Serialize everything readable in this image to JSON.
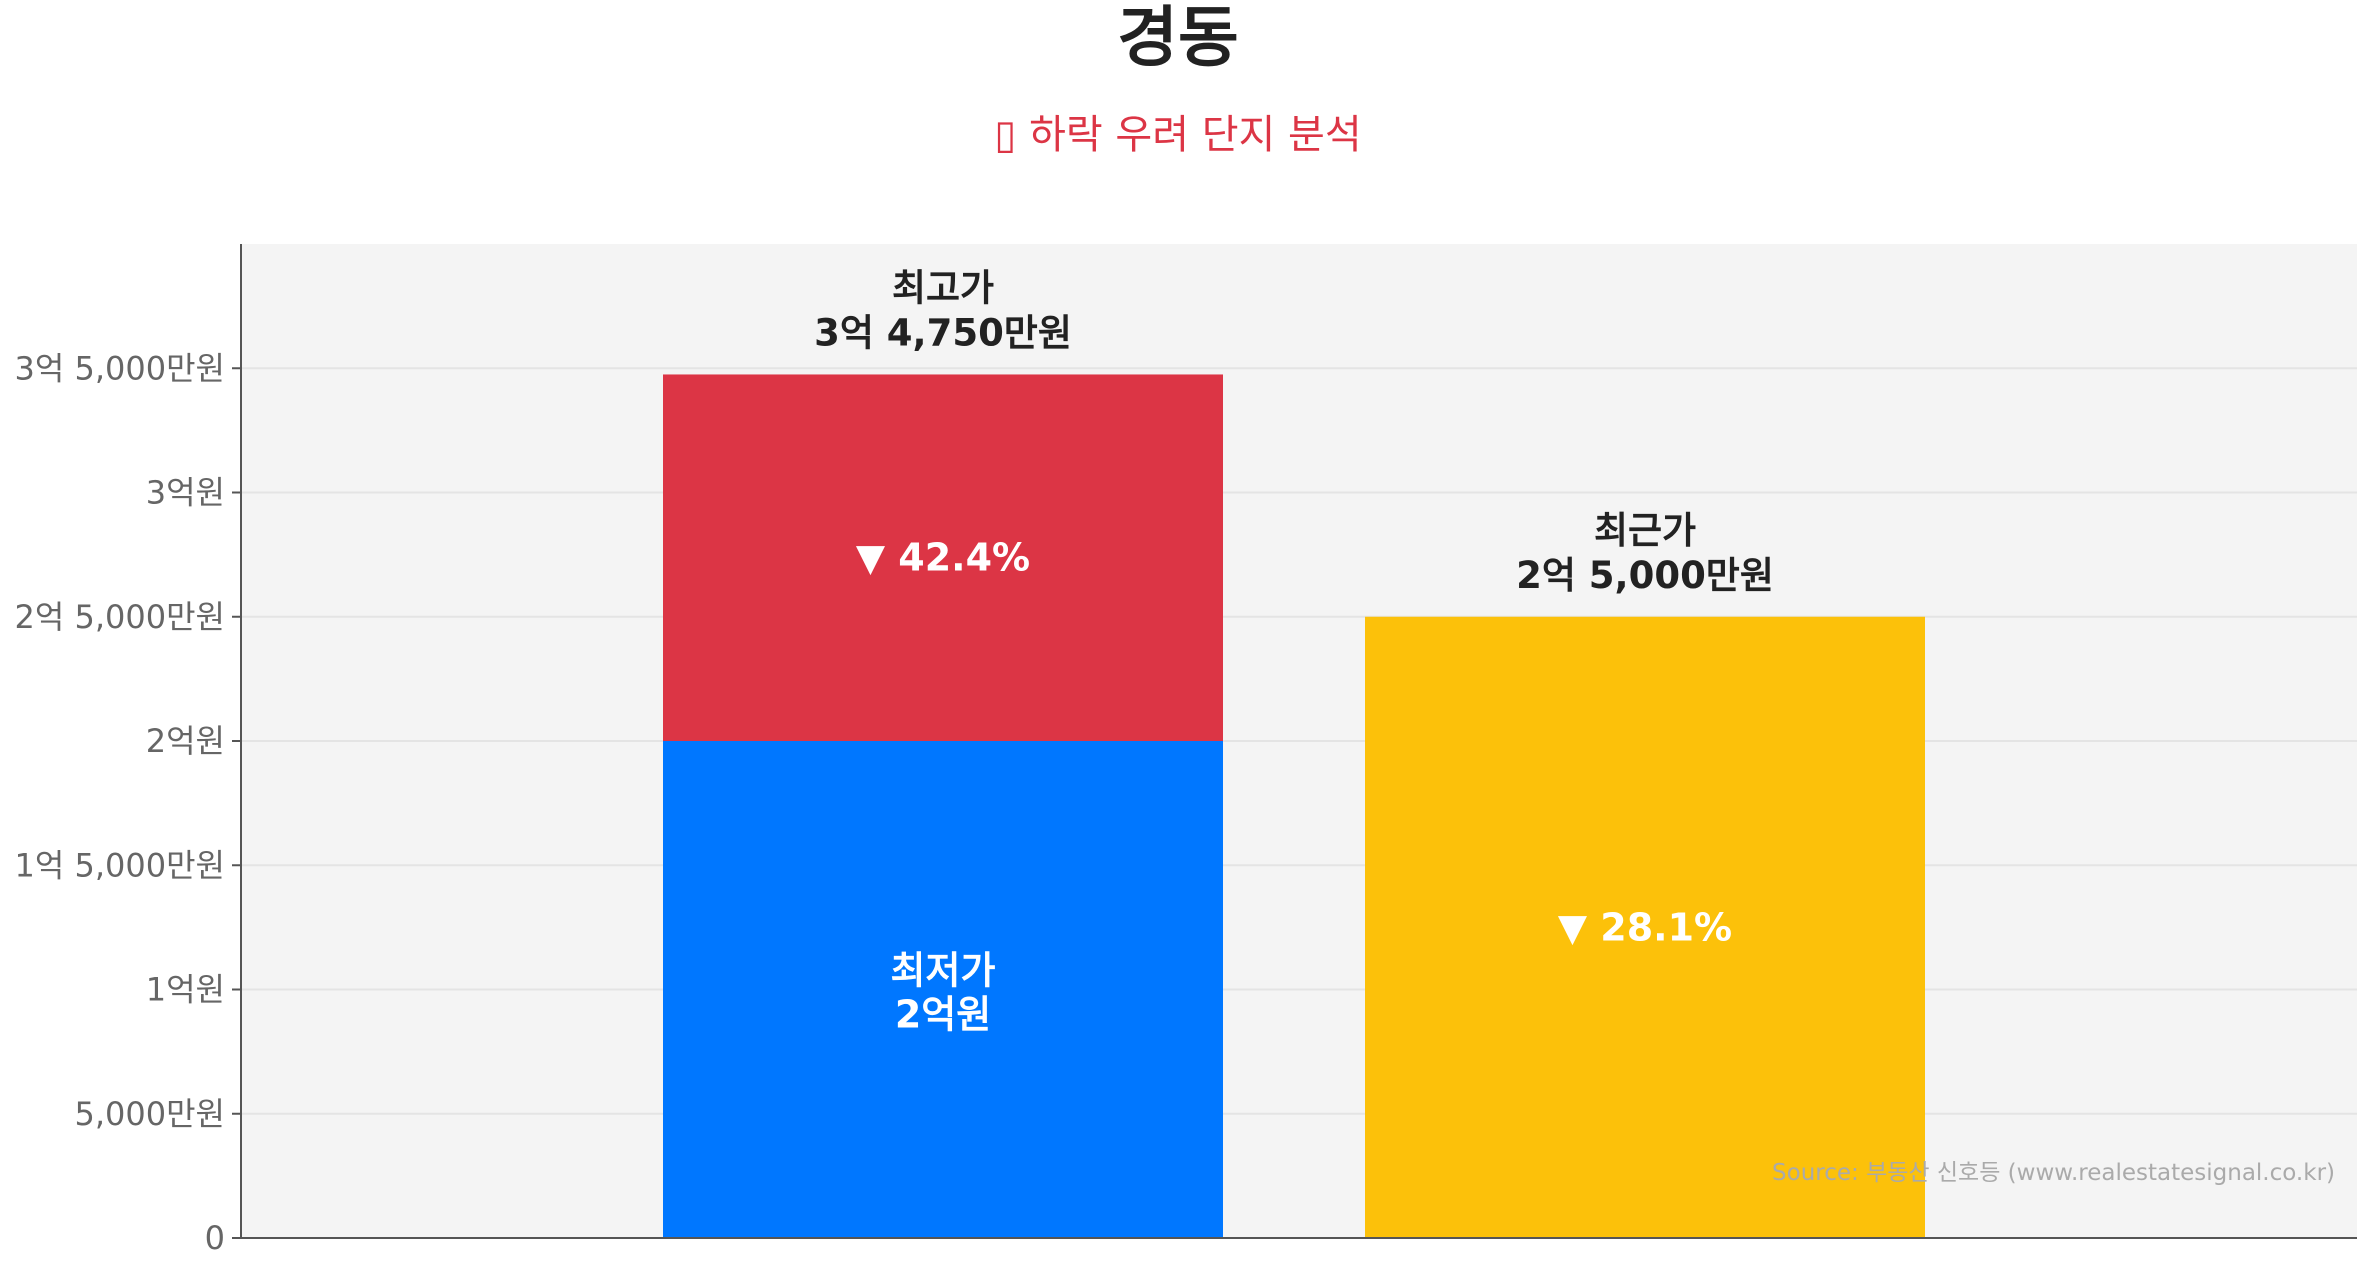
{
  "colors": {
    "background": "#ffffff",
    "plot_background": "#f4f4f4",
    "grid": "#e4e4e4",
    "axis": "#555555",
    "max_price": "#dc3545",
    "min_price": "#0077ff",
    "recent_price": "#fcc10a",
    "subtitle": "#dc3545"
  },
  "chart_data": {
    "type": "bar",
    "title": "경동",
    "subtitle": "▯ 하락 우려 단지 분석",
    "ylim": [
      0,
      400000000
    ],
    "yticks": [
      {
        "value": 0,
        "label": "0"
      },
      {
        "value": 50000000,
        "label": "5,000만원"
      },
      {
        "value": 100000000,
        "label": "1억원"
      },
      {
        "value": 150000000,
        "label": "1억 5,000만원"
      },
      {
        "value": 200000000,
        "label": "2억원"
      },
      {
        "value": 250000000,
        "label": "2억 5,000만원"
      },
      {
        "value": 300000000,
        "label": "3억원"
      },
      {
        "value": 350000000,
        "label": "3억 5,000만원"
      }
    ],
    "grid": true,
    "bars": [
      {
        "name": "최고가/최저가",
        "low_value": 200000000,
        "high_value": 347500000,
        "low_label": "최저가",
        "low_value_text": "2억원",
        "high_label": "최고가",
        "high_value_text": "3억 4,750만원",
        "change_text": "▼ 42.4%"
      },
      {
        "name": "최근가",
        "value": 250000000,
        "label": "최근가",
        "value_text": "2억 5,000만원",
        "change_text": "▼ 28.1%"
      }
    ],
    "source": "Source: 부동산 신호등 (www.realestatesignal.co.kr)"
  }
}
